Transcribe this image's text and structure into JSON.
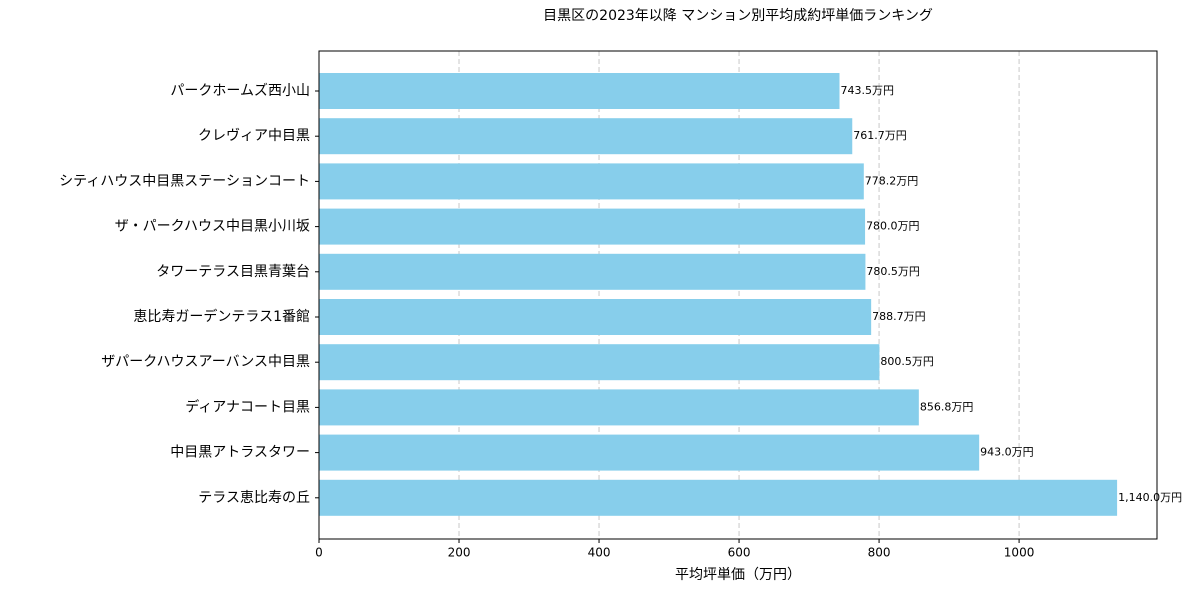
{
  "chart_data": {
    "type": "barh",
    "title": "目黒区の2023年以降 マンション別平均成約坪単価ランキング",
    "x_label": "平均坪単価（万円）",
    "categories": [
      "パークホームズ西小山",
      "クレヴィア中目黒",
      "シティハウス中目黒ステーションコート",
      "ザ・パークハウス中目黒小川坂",
      "タワーテラス目黒青葉台",
      "恵比寿ガーデンテラス1番館",
      "ザパークハウスアーバンス中目黒",
      "ディアナコート目黒",
      "中目黒アトラスタワー",
      "テラス恵比寿の丘"
    ],
    "values": [
      743.5,
      761.7,
      778.2,
      780.0,
      780.5,
      788.7,
      800.5,
      856.8,
      943.0,
      1140.0
    ],
    "value_labels": [
      "743.5万円",
      "761.7万円",
      "778.2万円",
      "780.0万円",
      "780.5万円",
      "788.7万円",
      "800.5万円",
      "856.8万円",
      "943.0万円",
      "1,140.0万円"
    ],
    "color": "#87ceeb",
    "xlim": [
      0,
      1197
    ],
    "xticks": [
      0,
      200,
      400,
      600,
      800,
      1000
    ],
    "grid": true
  }
}
